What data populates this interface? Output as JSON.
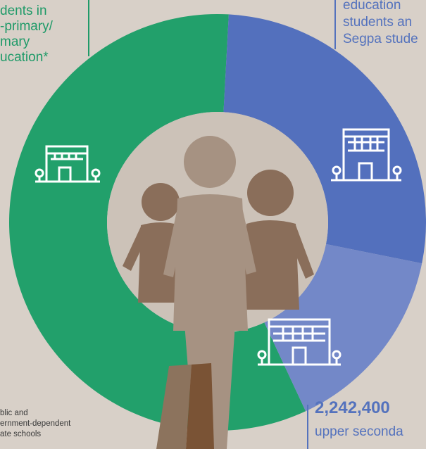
{
  "chart_data": {
    "type": "pie",
    "style": "donut",
    "slices": [
      {
        "label": "pre-primary/primary education",
        "value": 57.8,
        "color": "#22a06b"
      },
      {
        "label": "education students and Segpa students",
        "value": 27.3,
        "color": "#5370bd"
      },
      {
        "label": "upper secondary education",
        "value": 14.9,
        "color": "#7388c8"
      }
    ]
  },
  "labels": {
    "left_block": [
      "dents in",
      "-primary/",
      "mary",
      "ucation*"
    ],
    "right_block": [
      "education",
      "students an",
      "Segpa stude"
    ],
    "bottom_number": "2,242,400",
    "bottom_label": "upper seconda",
    "footnote": [
      "blic and",
      "ernment-dependent",
      "ate schools"
    ]
  },
  "icons": [
    "school-building-icon",
    "school-building-icon",
    "school-building-icon",
    "family-silhouette-icon"
  ],
  "colors": {
    "background": "#d8d0c8",
    "green": "#22a06b",
    "blue": "#5370bd",
    "light_blue": "#7388c8",
    "inner_circle": "#ccc2b8",
    "adult": "#a69282",
    "child": "#8a6e5a"
  }
}
